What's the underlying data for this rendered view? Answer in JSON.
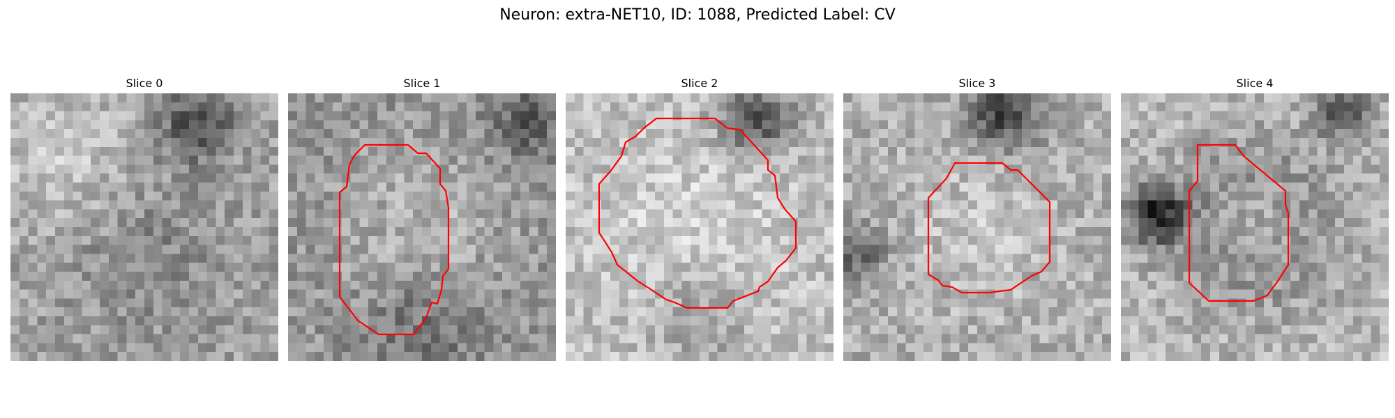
{
  "figure": {
    "title": "Neuron: extra-NET10, ID: 1088, Predicted Label: CV"
  },
  "panels": [
    {
      "title": "Slice 0",
      "has_contour": false
    },
    {
      "title": "Slice 1",
      "has_contour": true
    },
    {
      "title": "Slice 2",
      "has_contour": true
    },
    {
      "title": "Slice 3",
      "has_contour": true
    },
    {
      "title": "Slice 4",
      "has_contour": true
    }
  ],
  "colors": {
    "contour": "#ff0000",
    "colormap": "grayscale"
  }
}
